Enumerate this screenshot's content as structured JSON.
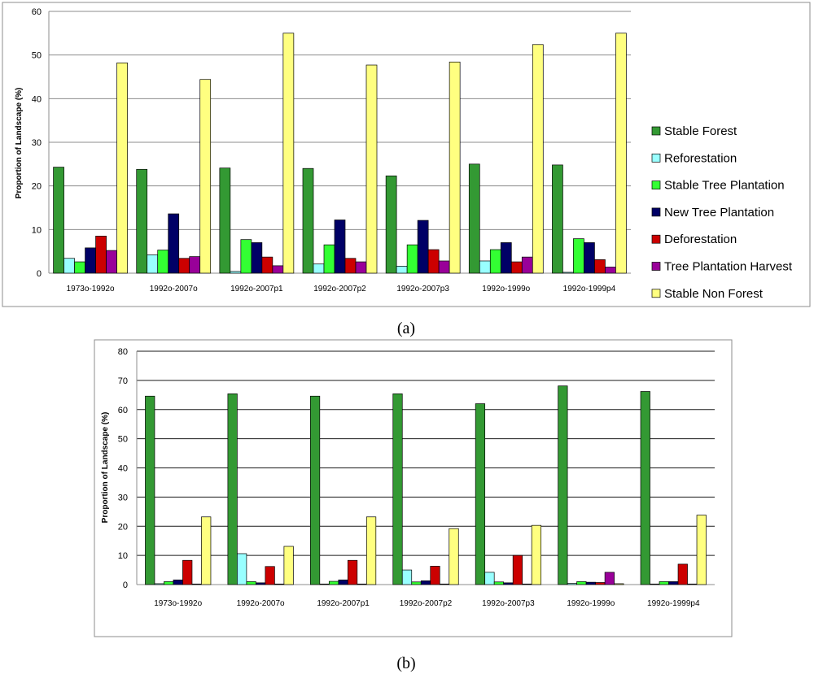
{
  "chart_data": [
    {
      "type": "bar",
      "panel_label": "(a)",
      "ylabel": "Proportion of Landscape (%)",
      "ylim": [
        0,
        60
      ],
      "yticks": [
        0,
        10,
        20,
        30,
        40,
        50,
        60
      ],
      "grid": true,
      "legend": "right",
      "categories": [
        "1973o-1992o",
        "1992o-2007o",
        "1992o-2007p1",
        "1992o-2007p2",
        "1992o-2007p3",
        "1992o-1999o",
        "1992o-1999p4"
      ],
      "series": [
        {
          "name": "Stable Forest",
          "color": "#339933",
          "values": [
            24.3,
            23.8,
            24.1,
            24.0,
            22.3,
            25.0,
            24.8
          ]
        },
        {
          "name": "Reforestation",
          "color": "#99ffff",
          "values": [
            3.4,
            4.2,
            0.4,
            2.1,
            1.6,
            2.8,
            0.2
          ]
        },
        {
          "name": "Stable Tree Plantation",
          "color": "#33ff33",
          "values": [
            2.6,
            5.3,
            7.7,
            6.5,
            6.5,
            5.4,
            7.9
          ]
        },
        {
          "name": "New Tree Plantation",
          "color": "#000066",
          "values": [
            5.8,
            13.6,
            7.0,
            12.2,
            12.1,
            7.0,
            7.0
          ]
        },
        {
          "name": "Deforestation",
          "color": "#cc0000",
          "values": [
            8.5,
            3.4,
            3.7,
            3.4,
            5.4,
            2.6,
            3.1
          ]
        },
        {
          "name": "Tree Plantation Harvest",
          "color": "#990099",
          "values": [
            5.2,
            3.8,
            1.7,
            2.6,
            2.8,
            3.7,
            1.4
          ]
        },
        {
          "name": "Stable Non Forest",
          "color": "#ffff80",
          "values": [
            48.2,
            44.4,
            55.0,
            47.7,
            48.4,
            52.4,
            55.0
          ]
        }
      ]
    },
    {
      "type": "bar",
      "panel_label": "(b)",
      "ylabel": "Proportion of Landscape (%)",
      "ylim": [
        0,
        80
      ],
      "yticks": [
        0,
        10,
        20,
        30,
        40,
        50,
        60,
        70,
        80
      ],
      "grid": true,
      "legend": "none",
      "categories": [
        "1973o-1992o",
        "1992o-2007o",
        "1992o-2007p1",
        "1992o-2007p2",
        "1992o-2007p3",
        "1992o-1999o",
        "1992o-1999p4"
      ],
      "series": [
        {
          "name": "Stable Forest",
          "color": "#339933",
          "values": [
            64.6,
            65.4,
            64.6,
            65.4,
            62.0,
            68.1,
            66.2
          ]
        },
        {
          "name": "Reforestation",
          "color": "#99ffff",
          "values": [
            0.3,
            10.6,
            0.2,
            5.0,
            4.2,
            0.4,
            0.2
          ]
        },
        {
          "name": "Stable Tree Plantation",
          "color": "#33ff33",
          "values": [
            1.0,
            1.0,
            1.1,
            0.9,
            0.9,
            1.0,
            1.0
          ]
        },
        {
          "name": "New Tree Plantation",
          "color": "#000066",
          "values": [
            1.6,
            0.6,
            1.6,
            1.3,
            0.6,
            0.8,
            1.0
          ]
        },
        {
          "name": "Deforestation",
          "color": "#cc0000",
          "values": [
            8.3,
            6.2,
            8.3,
            6.3,
            10.0,
            0.7,
            7.0
          ]
        },
        {
          "name": "Tree Plantation Harvest",
          "color": "#990099",
          "values": [
            0.2,
            0.2,
            0.2,
            0.2,
            0.2,
            4.2,
            0.2
          ]
        },
        {
          "name": "Stable Non Forest",
          "color": "#ffff80",
          "values": [
            23.2,
            13.1,
            23.2,
            19.2,
            20.3,
            0.3,
            23.8
          ]
        }
      ]
    }
  ]
}
